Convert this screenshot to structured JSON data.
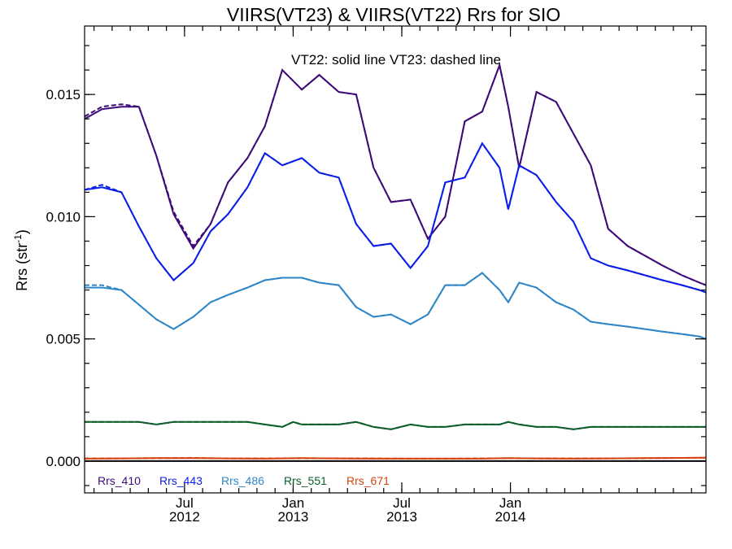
{
  "chart_data": {
    "type": "line",
    "title": "VIIRS(VT23) & VIIRS(VT22)  Rrs for SIO",
    "ylabel": "Rrs (str",
    "ylabel_sup": "-1",
    "ylabel_close": ")",
    "annotation": "VT22: solid line   VT23: dashed line",
    "xlim": [
      2012.04,
      2014.9
    ],
    "ylim": [
      -0.0013,
      0.0178
    ],
    "y_ticks": [
      {
        "value": 0.0,
        "label": "0.000"
      },
      {
        "value": 0.005,
        "label": "0.005"
      },
      {
        "value": 0.01,
        "label": "0.010"
      },
      {
        "value": 0.015,
        "label": "0.015"
      }
    ],
    "y_minor_step": 0.001,
    "x_ticks": [
      {
        "value": 2012.5,
        "label1": "Jul",
        "label2": "2012"
      },
      {
        "value": 2013.0,
        "label1": "Jan",
        "label2": "2013"
      },
      {
        "value": 2013.5,
        "label1": "Jul",
        "label2": "2013"
      },
      {
        "value": 2014.0,
        "label1": "Jan",
        "label2": "2014"
      }
    ],
    "x_minor_step": 0.0833333,
    "zero_line": 0.0,
    "series": [
      {
        "name": "Rrs_410",
        "color": "#3d0a78",
        "x": [
          2012.04,
          2012.12,
          2012.21,
          2012.29,
          2012.37,
          2012.45,
          2012.54,
          2012.62,
          2012.7,
          2012.79,
          2012.87,
          2012.95,
          2013.04,
          2013.12,
          2013.21,
          2013.29,
          2013.37,
          2013.45,
          2013.54,
          2013.62,
          2013.7,
          2013.79,
          2013.87,
          2013.95,
          2013.99,
          2014.04,
          2014.12,
          2014.21,
          2014.29,
          2014.37,
          2014.45,
          2014.54,
          2014.62,
          2014.7,
          2014.79,
          2014.87,
          2014.9
        ],
        "vt22": [
          0.014,
          0.0144,
          0.0145,
          0.0145,
          0.0125,
          0.0101,
          0.0087,
          0.0097,
          0.0114,
          0.0124,
          0.0137,
          0.016,
          0.0152,
          0.0158,
          0.0151,
          0.015,
          0.012,
          0.0106,
          0.0107,
          0.0091,
          0.01,
          0.0139,
          0.0143,
          0.0162,
          0.0145,
          0.012,
          0.0151,
          0.0147,
          0.0134,
          0.0121,
          0.0095,
          0.0088,
          0.0084,
          0.008,
          0.0076,
          0.0073,
          0.0072
        ],
        "vt23": [
          0.0141,
          0.0145,
          0.0146,
          0.0145,
          0.0125,
          0.0102,
          0.0088,
          0.0097,
          0.0114,
          0.0124,
          0.0137,
          0.016,
          0.0152,
          0.0158,
          0.0151,
          0.015,
          0.012,
          0.0106,
          0.0107,
          0.0091,
          0.01,
          0.0139,
          0.0143,
          0.0162,
          0.0145,
          0.012,
          0.0151,
          0.0147,
          0.0134,
          0.0121,
          0.0095,
          0.0088,
          0.0084,
          0.008,
          0.0076,
          0.0073,
          0.0072
        ]
      },
      {
        "name": "Rrs_443",
        "color": "#0a1ee6",
        "x": [
          2012.04,
          2012.12,
          2012.21,
          2012.29,
          2012.37,
          2012.45,
          2012.54,
          2012.62,
          2012.7,
          2012.79,
          2012.87,
          2012.95,
          2013.04,
          2013.12,
          2013.21,
          2013.29,
          2013.37,
          2013.45,
          2013.54,
          2013.62,
          2013.7,
          2013.79,
          2013.87,
          2013.95,
          2013.99,
          2014.04,
          2014.12,
          2014.21,
          2014.29,
          2014.37,
          2014.45,
          2014.54,
          2014.62,
          2014.7,
          2014.79,
          2014.87,
          2014.9
        ],
        "vt22": [
          0.0111,
          0.0112,
          0.011,
          0.0096,
          0.0083,
          0.0074,
          0.0081,
          0.0094,
          0.0101,
          0.0112,
          0.0126,
          0.0121,
          0.0124,
          0.0118,
          0.0116,
          0.0097,
          0.0088,
          0.0089,
          0.0079,
          0.0088,
          0.0114,
          0.0116,
          0.013,
          0.012,
          0.0103,
          0.0121,
          0.0117,
          0.0106,
          0.0098,
          0.0083,
          0.008,
          0.0078,
          0.0076,
          0.0074,
          0.0072,
          0.007,
          0.0069
        ],
        "vt23": [
          0.0111,
          0.0113,
          0.011,
          0.0096,
          0.0083,
          0.0074,
          0.0081,
          0.0094,
          0.0101,
          0.0112,
          0.0126,
          0.0121,
          0.0124,
          0.0118,
          0.0116,
          0.0097,
          0.0088,
          0.0089,
          0.0079,
          0.0088,
          0.0114,
          0.0116,
          0.013,
          0.012,
          0.0103,
          0.0121,
          0.0117,
          0.0106,
          0.0098,
          0.0083,
          0.008,
          0.0078,
          0.0076,
          0.0074,
          0.0072,
          0.007,
          0.0069
        ]
      },
      {
        "name": "Rrs_486",
        "color": "#2f86c6",
        "x": [
          2012.04,
          2012.12,
          2012.21,
          2012.29,
          2012.37,
          2012.45,
          2012.54,
          2012.62,
          2012.7,
          2012.79,
          2012.87,
          2012.95,
          2013.04,
          2013.12,
          2013.21,
          2013.29,
          2013.37,
          2013.45,
          2013.54,
          2013.62,
          2013.7,
          2013.79,
          2013.87,
          2013.95,
          2013.99,
          2014.04,
          2014.12,
          2014.21,
          2014.29,
          2014.37,
          2014.45,
          2014.54,
          2014.62,
          2014.7,
          2014.79,
          2014.87,
          2014.9
        ],
        "vt22": [
          0.0071,
          0.0071,
          0.007,
          0.0064,
          0.0058,
          0.0054,
          0.0059,
          0.0065,
          0.0068,
          0.0071,
          0.0074,
          0.0075,
          0.0075,
          0.0073,
          0.0072,
          0.0063,
          0.0059,
          0.006,
          0.0056,
          0.006,
          0.0072,
          0.0072,
          0.0077,
          0.007,
          0.0065,
          0.0073,
          0.0071,
          0.0065,
          0.0062,
          0.0057,
          0.0056,
          0.0055,
          0.0054,
          0.0053,
          0.0052,
          0.0051,
          0.005
        ],
        "vt23": [
          0.0072,
          0.0072,
          0.007,
          0.0064,
          0.0058,
          0.0054,
          0.0059,
          0.0065,
          0.0068,
          0.0071,
          0.0074,
          0.0075,
          0.0075,
          0.0073,
          0.0072,
          0.0063,
          0.0059,
          0.006,
          0.0056,
          0.006,
          0.0072,
          0.0072,
          0.0077,
          0.007,
          0.0065,
          0.0073,
          0.0071,
          0.0065,
          0.0062,
          0.0057,
          0.0056,
          0.0055,
          0.0054,
          0.0053,
          0.0052,
          0.0051,
          0.005
        ]
      },
      {
        "name": "Rrs_551",
        "color": "#0d5e2a",
        "x": [
          2012.04,
          2012.12,
          2012.21,
          2012.29,
          2012.37,
          2012.45,
          2012.54,
          2012.62,
          2012.7,
          2012.79,
          2012.87,
          2012.95,
          2013.0,
          2013.04,
          2013.12,
          2013.21,
          2013.29,
          2013.37,
          2013.45,
          2013.54,
          2013.62,
          2013.7,
          2013.79,
          2013.87,
          2013.95,
          2013.99,
          2014.04,
          2014.12,
          2014.21,
          2014.29,
          2014.37,
          2014.45,
          2014.54,
          2014.62,
          2014.7,
          2014.79,
          2014.87,
          2014.9
        ],
        "vt22": [
          0.0016,
          0.0016,
          0.0016,
          0.0016,
          0.0015,
          0.0016,
          0.0016,
          0.0016,
          0.0016,
          0.0016,
          0.0015,
          0.0014,
          0.0016,
          0.0015,
          0.0015,
          0.0015,
          0.0016,
          0.0014,
          0.0013,
          0.0015,
          0.0014,
          0.0014,
          0.0015,
          0.0015,
          0.0015,
          0.0016,
          0.0015,
          0.0014,
          0.0014,
          0.0013,
          0.0014,
          0.0014,
          0.0014,
          0.0014,
          0.0014,
          0.0014,
          0.0014,
          0.0014
        ],
        "vt23": [
          0.0016,
          0.0016,
          0.0016,
          0.0016,
          0.0015,
          0.0016,
          0.0016,
          0.0016,
          0.0016,
          0.0016,
          0.0015,
          0.0014,
          0.0016,
          0.0015,
          0.0015,
          0.0015,
          0.0016,
          0.0014,
          0.0013,
          0.0015,
          0.0014,
          0.0014,
          0.0015,
          0.0015,
          0.0015,
          0.0016,
          0.0015,
          0.0014,
          0.0014,
          0.0013,
          0.0014,
          0.0014,
          0.0014,
          0.0014,
          0.0014,
          0.0014,
          0.0014,
          0.0014
        ]
      },
      {
        "name": "Rrs_671",
        "color": "#d6420f",
        "x": [
          2012.04,
          2012.21,
          2012.37,
          2012.54,
          2012.7,
          2012.87,
          2013.04,
          2013.21,
          2013.37,
          2013.54,
          2013.7,
          2013.87,
          2013.99,
          2014.12,
          2014.29,
          2014.45,
          2014.62,
          2014.79,
          2014.9
        ],
        "vt22": [
          0.0001,
          0.00011,
          0.00012,
          0.00012,
          0.00011,
          0.0001,
          0.00012,
          0.00011,
          0.0001,
          0.0001,
          0.0001,
          0.0001,
          0.00012,
          0.00011,
          0.0001,
          0.00011,
          0.00012,
          0.00013,
          0.00014
        ],
        "vt23": [
          0.00011,
          0.00011,
          0.00012,
          0.00013,
          0.00011,
          0.00011,
          0.00012,
          0.00011,
          0.00011,
          0.0001,
          0.0001,
          0.00011,
          0.00012,
          0.00011,
          0.00011,
          0.00011,
          0.00012,
          0.00013,
          0.00014
        ]
      }
    ],
    "legend": [
      {
        "label": "Rrs_410",
        "color": "#3d0a78"
      },
      {
        "label": "Rrs_443",
        "color": "#0a1ee6"
      },
      {
        "label": "Rrs_486",
        "color": "#2f86c6"
      },
      {
        "label": "Rrs_551",
        "color": "#0d5e2a"
      },
      {
        "label": "Rrs_671",
        "color": "#d6420f"
      }
    ]
  }
}
